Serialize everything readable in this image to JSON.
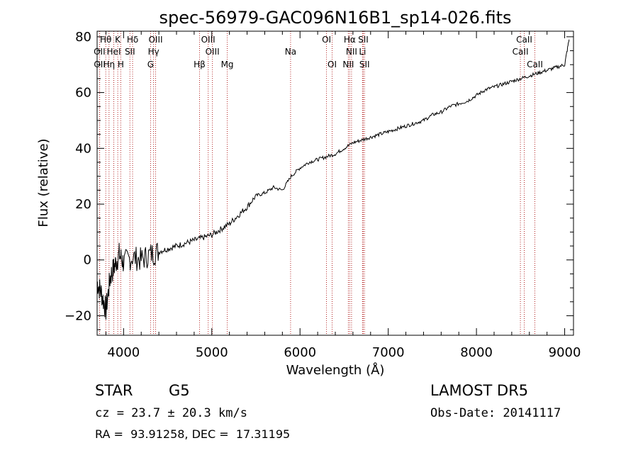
{
  "footer": {
    "class_label": "STAR",
    "subclass": "G5",
    "cz": "cz = 23.7 ± 20.3 km/s",
    "coords": "RA =  93.91258, DEC =  17.31195",
    "survey": "LAMOST DR5",
    "obs_date": "Obs-Date: 20141117"
  },
  "chart_data": {
    "type": "line",
    "title": "spec-56979-GAC096N16B1_sp14-026.fits",
    "xlabel": "Wavelength (Å)",
    "ylabel": "Flux (relative)",
    "xlim": [
      3700,
      9100
    ],
    "ylim": [
      -27,
      82
    ],
    "xticks": [
      4000,
      5000,
      6000,
      7000,
      8000,
      9000
    ],
    "yticks": [
      -20,
      0,
      20,
      40,
      60,
      80
    ],
    "grid": false,
    "line_color": "#000000",
    "marker_color": "#b22222",
    "spectral_lines": [
      {
        "label": "Hθ",
        "x": 3798,
        "row": 0
      },
      {
        "label": "K",
        "x": 3934,
        "row": 0
      },
      {
        "label": "Hδ",
        "x": 4102,
        "row": 0
      },
      {
        "label": "OIII",
        "x": 4363,
        "row": 0
      },
      {
        "label": "OIII",
        "x": 4959,
        "row": 0
      },
      {
        "label": "OI",
        "x": 6300,
        "row": 0
      },
      {
        "label": "Hα",
        "x": 6563,
        "row": 0
      },
      {
        "label": "SII",
        "x": 6717,
        "row": 0
      },
      {
        "label": "CaII",
        "x": 8542,
        "row": 0
      },
      {
        "label": "OII",
        "x": 3727,
        "row": 1
      },
      {
        "label": "HeI",
        "x": 3889,
        "row": 1
      },
      {
        "label": "SII",
        "x": 4072,
        "row": 1
      },
      {
        "label": "Hγ",
        "x": 4340,
        "row": 1
      },
      {
        "label": "OIII",
        "x": 5007,
        "row": 1
      },
      {
        "label": "Na",
        "x": 5893,
        "row": 1
      },
      {
        "label": "NII",
        "x": 6584,
        "row": 1
      },
      {
        "label": "Li",
        "x": 6708,
        "row": 1
      },
      {
        "label": "CaII",
        "x": 8498,
        "row": 1
      },
      {
        "label": "OII",
        "x": 3729,
        "row": 2
      },
      {
        "label": "Hη",
        "x": 3835,
        "row": 2
      },
      {
        "label": "H",
        "x": 3968,
        "row": 2
      },
      {
        "label": "G",
        "x": 4306,
        "row": 2
      },
      {
        "label": "Hβ",
        "x": 4861,
        "row": 2
      },
      {
        "label": "Mg",
        "x": 5175,
        "row": 2
      },
      {
        "label": "OI",
        "x": 6364,
        "row": 2
      },
      {
        "label": "NII",
        "x": 6548,
        "row": 2
      },
      {
        "label": "SII",
        "x": 6731,
        "row": 2
      },
      {
        "label": "CaII",
        "x": 8662,
        "row": 2
      }
    ],
    "series": [
      {
        "x": [
          3700,
          3750,
          3800,
          3850,
          3900,
          3950,
          4000,
          4100,
          4200,
          4300,
          4400,
          4500,
          4600,
          4700,
          4800,
          4900,
          5000,
          5100,
          5200,
          5300,
          5400,
          5500,
          5600,
          5700,
          5800,
          5900,
          6000,
          6100,
          6200,
          6300,
          6400,
          6500,
          6600,
          6700,
          6800,
          6900,
          7000,
          7100,
          7200,
          7300,
          7400,
          7500,
          7600,
          7700,
          7800,
          7900,
          8000,
          8100,
          8200,
          8300,
          8400,
          8500,
          8600,
          8700,
          8800,
          8900,
          9000,
          9050
        ],
        "y": [
          -8,
          -12,
          -18,
          -6,
          -2,
          2,
          -1,
          1,
          0,
          2,
          3,
          4,
          5,
          6,
          7,
          8,
          9,
          11,
          13,
          16,
          19,
          23,
          24,
          26,
          25,
          30,
          33,
          35,
          36,
          37,
          38,
          40,
          42,
          43,
          44,
          45,
          46,
          47,
          48,
          49,
          50,
          52,
          53,
          55,
          56,
          57,
          59,
          61,
          62,
          63,
          64,
          65,
          66,
          67,
          68,
          69,
          70,
          79
        ]
      }
    ]
  }
}
